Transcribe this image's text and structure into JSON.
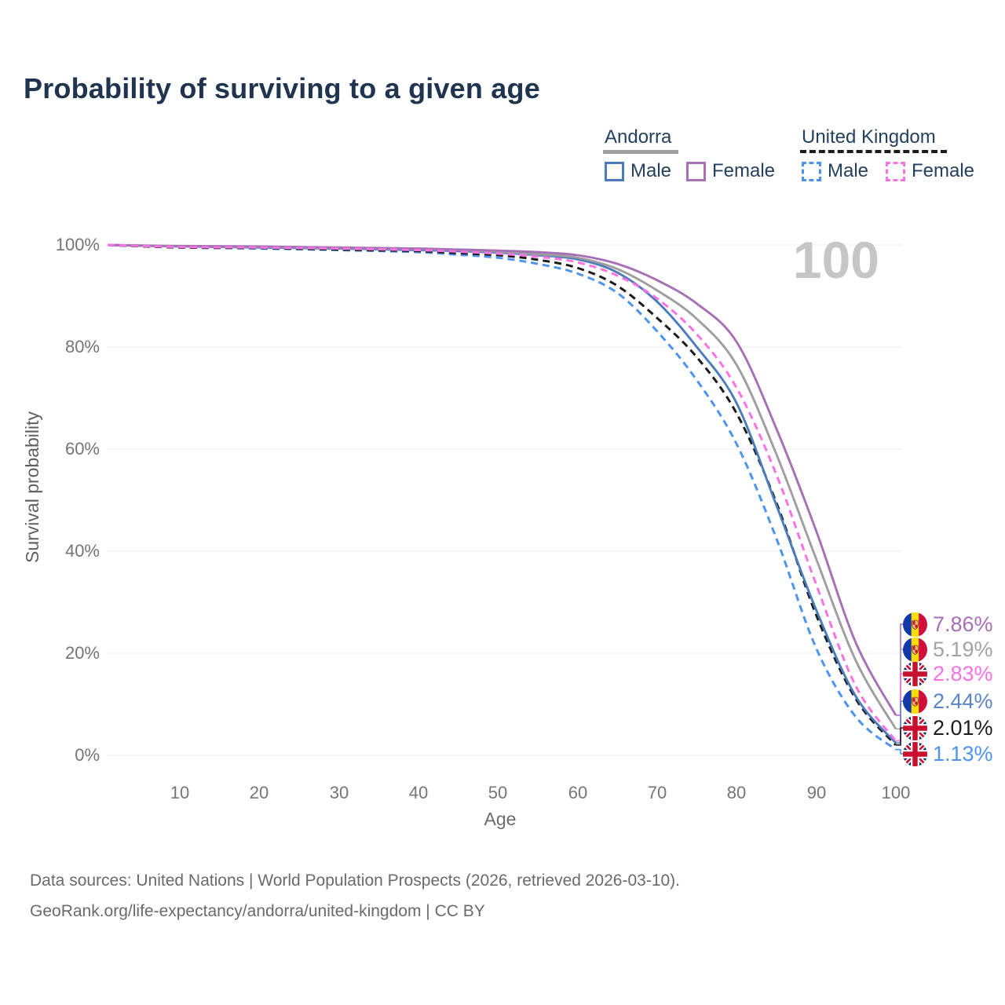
{
  "title": "Probability of surviving to a given age",
  "watermark": "100",
  "legend": {
    "groups": [
      {
        "country": "Andorra",
        "style": "solid",
        "underline_color": "#9e9e9e",
        "entries": [
          {
            "label": "Male",
            "series": "andorra-male"
          },
          {
            "label": "Female",
            "series": "andorra-female"
          }
        ]
      },
      {
        "country": "United Kingdom",
        "style": "dashed",
        "underline_color": "#1c1c1c",
        "entries": [
          {
            "label": "Male",
            "series": "uk-male"
          },
          {
            "label": "Female",
            "series": "uk-female"
          }
        ]
      }
    ]
  },
  "y_axis": {
    "title": "Survival probability",
    "ticks": [
      "100%",
      "80%",
      "60%",
      "40%",
      "20%",
      "0%"
    ]
  },
  "x_axis": {
    "title": "Age",
    "ticks": [
      "10",
      "20",
      "30",
      "40",
      "50",
      "60",
      "70",
      "80",
      "90",
      "100"
    ]
  },
  "end_labels": [
    {
      "series": "andorra-female",
      "flag": "andorra",
      "value": "7.86%",
      "color": "#a76fb5"
    },
    {
      "series": "andorra-total",
      "flag": "andorra",
      "value": "5.19%",
      "color": "#a3a3a3"
    },
    {
      "series": "uk-female",
      "flag": "uk",
      "value": "2.83%",
      "color": "#fb72e3"
    },
    {
      "series": "andorra-male",
      "flag": "andorra",
      "value": "2.44%",
      "color": "#5c85c7"
    },
    {
      "series": "uk-total",
      "flag": "uk",
      "value": "2.01%",
      "color": "#1c1c1c"
    },
    {
      "series": "uk-male",
      "flag": "uk",
      "value": "1.13%",
      "color": "#4d94f2"
    }
  ],
  "footer": {
    "line1": "Data sources: United Nations | World Population Prospects (2026, retrieved 2026-03-10).",
    "line2": "GeoRank.org/life-expectancy/andorra/united-kingdom | CC BY"
  },
  "chart_data": {
    "type": "line",
    "title": "Probability of surviving to a given age",
    "xlabel": "Age",
    "ylabel": "Survival probability",
    "xlim": [
      0,
      100
    ],
    "ylim": [
      0,
      100
    ],
    "grid": "horizontal",
    "legend_position": "top-right",
    "x": [
      0,
      10,
      20,
      30,
      40,
      45,
      50,
      55,
      60,
      65,
      70,
      75,
      80,
      85,
      90,
      95,
      100
    ],
    "series": [
      {
        "id": "uk-male",
        "name": "United Kingdom Male",
        "color": "#4d94f2",
        "dash": true,
        "values": [
          100,
          99.5,
          99.3,
          99.0,
          98.6,
          98.1,
          97.5,
          96.3,
          94.4,
          90.6,
          83.1,
          73.5,
          61.0,
          42.5,
          21.0,
          7.5,
          1.13
        ]
      },
      {
        "id": "uk-total",
        "name": "United Kingdom",
        "color": "#1c1c1c",
        "dash": true,
        "values": [
          100,
          99.5,
          99.4,
          99.1,
          98.8,
          98.4,
          98.0,
          97.1,
          95.5,
          92.0,
          85.7,
          78.0,
          67.0,
          49.5,
          27.5,
          11.0,
          2.01
        ]
      },
      {
        "id": "andorra-male",
        "name": "Andorra Male",
        "color": "#4a7bbd",
        "dash": false,
        "values": [
          100,
          99.7,
          99.5,
          99.3,
          99.0,
          98.8,
          98.5,
          98.0,
          97.2,
          94.6,
          88.9,
          80.0,
          69.0,
          49.0,
          28.5,
          11.5,
          2.44
        ]
      },
      {
        "id": "andorra-total",
        "name": "Andorra",
        "color": "#9e9e9e",
        "dash": false,
        "values": [
          100,
          99.7,
          99.6,
          99.4,
          99.2,
          99.0,
          98.7,
          98.2,
          97.5,
          95.3,
          91.1,
          85.5,
          76.5,
          59.0,
          38.5,
          18.5,
          5.19
        ]
      },
      {
        "id": "andorra-female",
        "name": "Andorra Female",
        "color": "#a76fb5",
        "dash": false,
        "values": [
          100,
          99.8,
          99.7,
          99.5,
          99.3,
          99.1,
          98.9,
          98.6,
          98.0,
          96.3,
          93.1,
          88.5,
          81.0,
          64.0,
          44.0,
          22.0,
          7.86
        ]
      },
      {
        "id": "uk-female",
        "name": "United Kingdom Female",
        "color": "#fb72e3",
        "dash": true,
        "values": [
          100,
          99.6,
          99.5,
          99.3,
          99.0,
          98.7,
          98.3,
          97.7,
          96.6,
          94.0,
          89.5,
          82.5,
          72.0,
          55.0,
          33.5,
          13.5,
          2.83
        ]
      }
    ]
  }
}
